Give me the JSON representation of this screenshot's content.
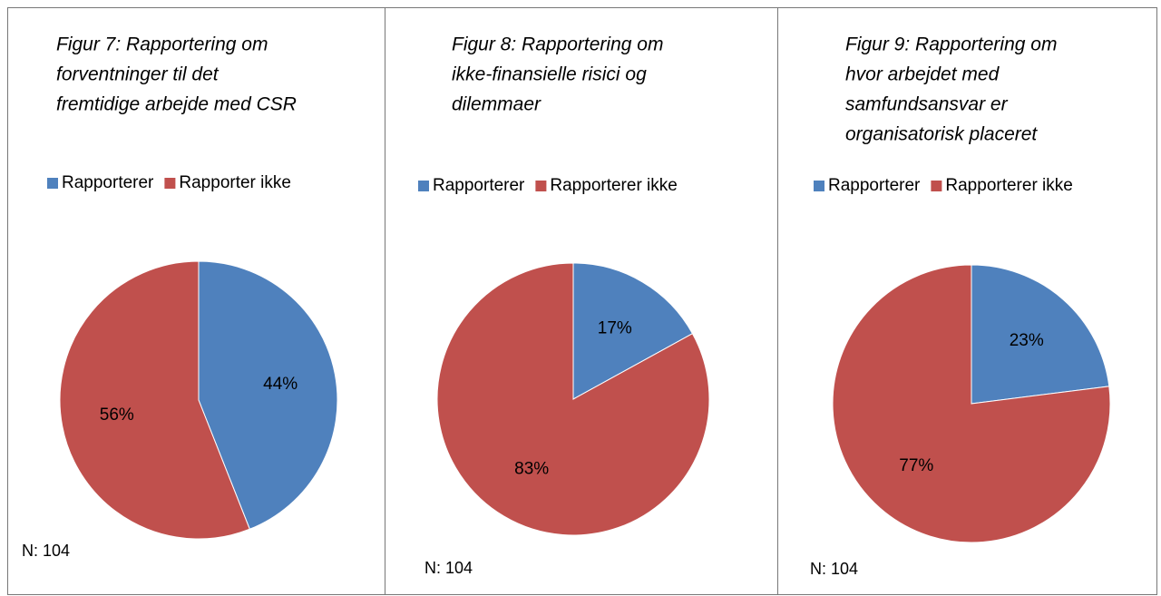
{
  "chart_data": [
    {
      "type": "pie",
      "title": [
        "Figur  7: Rapportering om",
        "forventninger til det",
        "fremtidige arbejde med CSR"
      ],
      "categories": [
        "Rapporterer",
        "Rapporter ikke"
      ],
      "values": [
        44,
        56
      ],
      "value_labels": [
        "44%",
        "56%"
      ],
      "colors": [
        "#4f81bd",
        "#c0504d"
      ],
      "note": "N: 104"
    },
    {
      "type": "pie",
      "title": [
        "Figur 8: Rapportering om",
        "ikke-finansielle risici og",
        "dilemmaer"
      ],
      "categories": [
        "Rapporterer",
        "Rapporterer ikke"
      ],
      "values": [
        17,
        83
      ],
      "value_labels": [
        "17%",
        "83%"
      ],
      "colors": [
        "#4f81bd",
        "#c0504d"
      ],
      "note": "N: 104"
    },
    {
      "type": "pie",
      "title": [
        "Figur 9: Rapportering om",
        "hvor arbejdet med",
        "samfundsansvar er",
        "organisatorisk placeret"
      ],
      "categories": [
        "Rapporterer",
        "Rapporterer ikke"
      ],
      "values": [
        23,
        77
      ],
      "value_labels": [
        "23%",
        "77%"
      ],
      "colors": [
        "#4f81bd",
        "#c0504d"
      ],
      "note": "N: 104"
    }
  ]
}
